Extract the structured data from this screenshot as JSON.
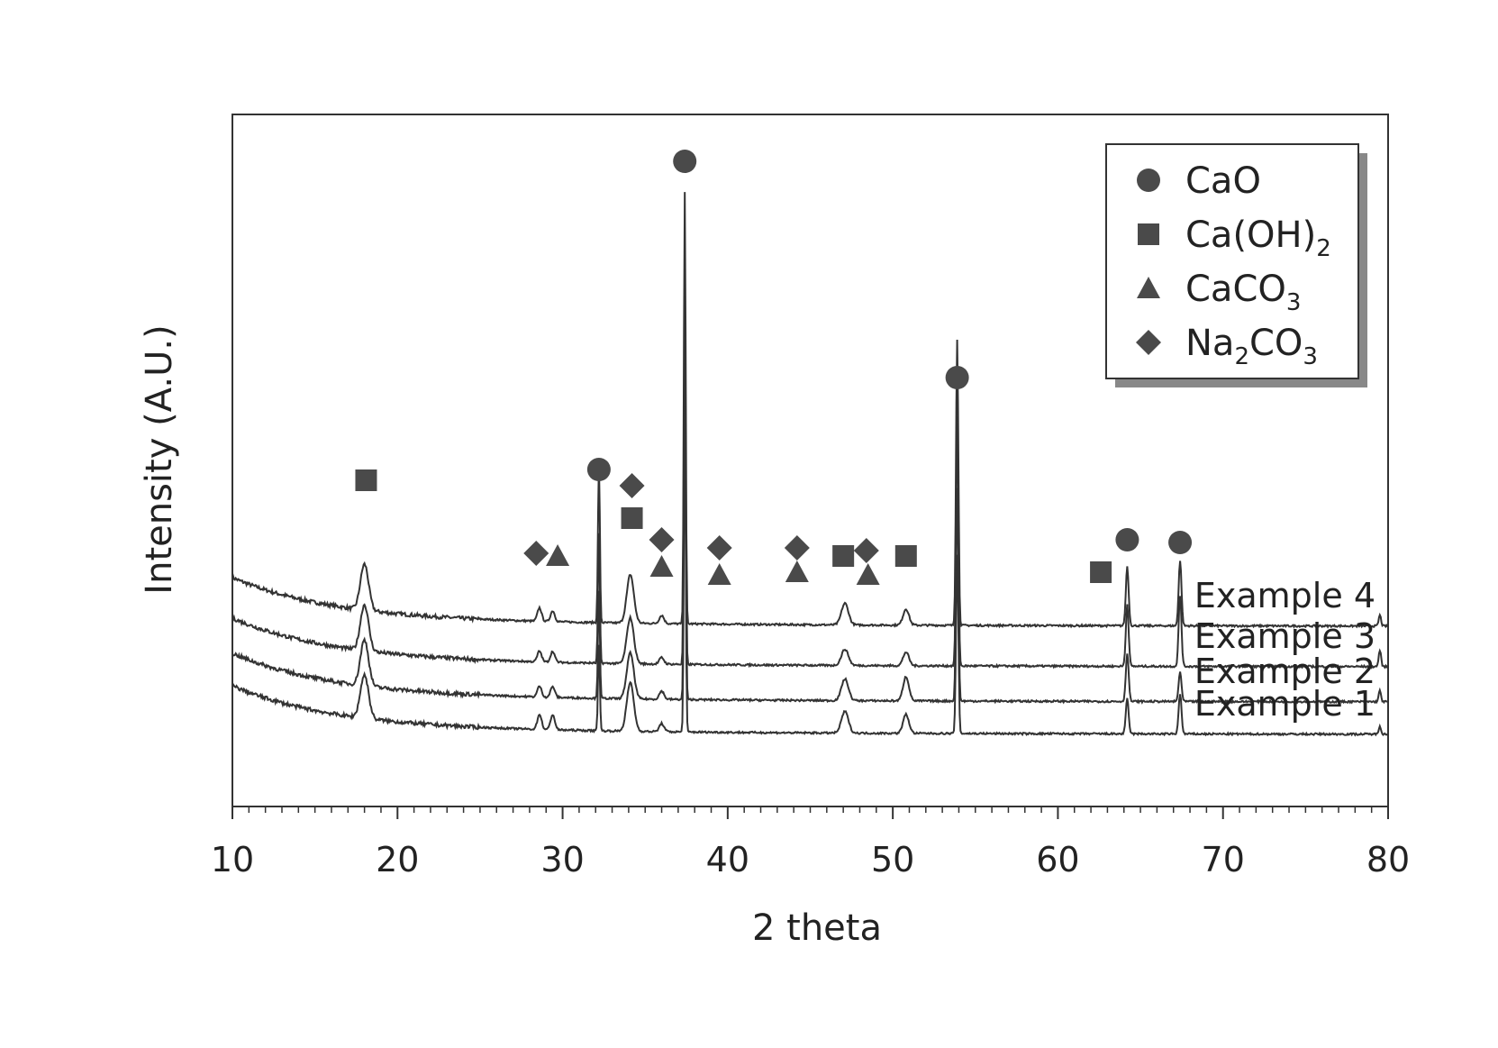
{
  "chart_data": {
    "type": "line",
    "title": "",
    "xlabel": "2 theta",
    "ylabel": "Intensity (A.U.)",
    "xlim": [
      10,
      80
    ],
    "xticks": [
      10,
      20,
      30,
      40,
      50,
      60,
      70,
      80
    ],
    "y_units": "arbitrary",
    "grid": false,
    "legend_position": "top-right",
    "legend": [
      {
        "symbol": "circle",
        "label": "CaO"
      },
      {
        "symbol": "square",
        "label": "Ca(OH)",
        "sub": "2",
        "suffix": ""
      },
      {
        "symbol": "triangle",
        "label": "CaCO",
        "sub": "3",
        "suffix": ""
      },
      {
        "symbol": "diamond",
        "label": "Na",
        "sub": "2",
        "suffix": "CO",
        "sub2": "3"
      }
    ],
    "series": [
      {
        "name": "Example 4",
        "offset": 2.0
      },
      {
        "name": "Example 3",
        "offset": 1.25
      },
      {
        "name": "Example 2",
        "offset": 0.6
      },
      {
        "name": "Example 1",
        "offset": 0.0
      }
    ],
    "peaks": [
      {
        "x": 18.0,
        "h": [
          0.85,
          0.85,
          0.85,
          0.8
        ],
        "w": 0.35
      },
      {
        "x": 28.6,
        "h": [
          0.25,
          0.2,
          0.2,
          0.28
        ],
        "w": 0.18
      },
      {
        "x": 29.4,
        "h": [
          0.2,
          0.2,
          0.2,
          0.28
        ],
        "w": 0.18
      },
      {
        "x": 32.2,
        "h": [
          3.0,
          2.4,
          2.0,
          1.6
        ],
        "w": 0.08
      },
      {
        "x": 34.1,
        "h": [
          0.9,
          0.85,
          0.85,
          0.9
        ],
        "w": 0.3
      },
      {
        "x": 36.0,
        "h": [
          0.15,
          0.12,
          0.15,
          0.15
        ],
        "w": 0.2
      },
      {
        "x": 37.4,
        "h": [
          8.0,
          7.0,
          6.5,
          6.0
        ],
        "w": 0.08
      },
      {
        "x": 47.1,
        "h": [
          0.4,
          0.3,
          0.4,
          0.4
        ],
        "w": 0.3
      },
      {
        "x": 50.8,
        "h": [
          0.3,
          0.25,
          0.45,
          0.35
        ],
        "w": 0.25
      },
      {
        "x": 53.9,
        "h": [
          5.3,
          4.6,
          3.95,
          3.3
        ],
        "w": 0.1
      },
      {
        "x": 64.2,
        "h": [
          1.1,
          1.15,
          0.9,
          0.65
        ],
        "w": 0.12
      },
      {
        "x": 67.4,
        "h": [
          1.2,
          1.3,
          0.55,
          0.75
        ],
        "w": 0.12
      },
      {
        "x": 79.5,
        "h": [
          0.2,
          0.3,
          0.2,
          0.15
        ],
        "w": 0.1
      }
    ],
    "phase_markers": [
      {
        "symbol": "circle",
        "x": 32.2,
        "y": 4.9
      },
      {
        "symbol": "circle",
        "x": 37.4,
        "y": 10.6
      },
      {
        "symbol": "circle",
        "x": 53.9,
        "y": 6.6
      },
      {
        "symbol": "circle",
        "x": 64.2,
        "y": 3.6
      },
      {
        "symbol": "circle",
        "x": 67.4,
        "y": 3.55
      },
      {
        "symbol": "square",
        "x": 18.1,
        "y": 4.7
      },
      {
        "symbol": "square",
        "x": 34.2,
        "y": 4.0
      },
      {
        "symbol": "square",
        "x": 47.0,
        "y": 3.3
      },
      {
        "symbol": "square",
        "x": 50.8,
        "y": 3.3
      },
      {
        "symbol": "square",
        "x": 62.6,
        "y": 3.0
      },
      {
        "symbol": "triangle",
        "x": 29.7,
        "y": 3.3
      },
      {
        "symbol": "triangle",
        "x": 36.0,
        "y": 3.1
      },
      {
        "symbol": "triangle",
        "x": 39.5,
        "y": 2.95
      },
      {
        "symbol": "triangle",
        "x": 44.2,
        "y": 3.0
      },
      {
        "symbol": "triangle",
        "x": 48.5,
        "y": 2.95
      },
      {
        "symbol": "diamond",
        "x": 28.4,
        "y": 3.35
      },
      {
        "symbol": "diamond",
        "x": 34.2,
        "y": 4.6
      },
      {
        "symbol": "diamond",
        "x": 36.0,
        "y": 3.6
      },
      {
        "symbol": "diamond",
        "x": 39.5,
        "y": 3.45
      },
      {
        "symbol": "diamond",
        "x": 44.2,
        "y": 3.45
      },
      {
        "symbol": "diamond",
        "x": 48.4,
        "y": 3.4
      }
    ]
  }
}
